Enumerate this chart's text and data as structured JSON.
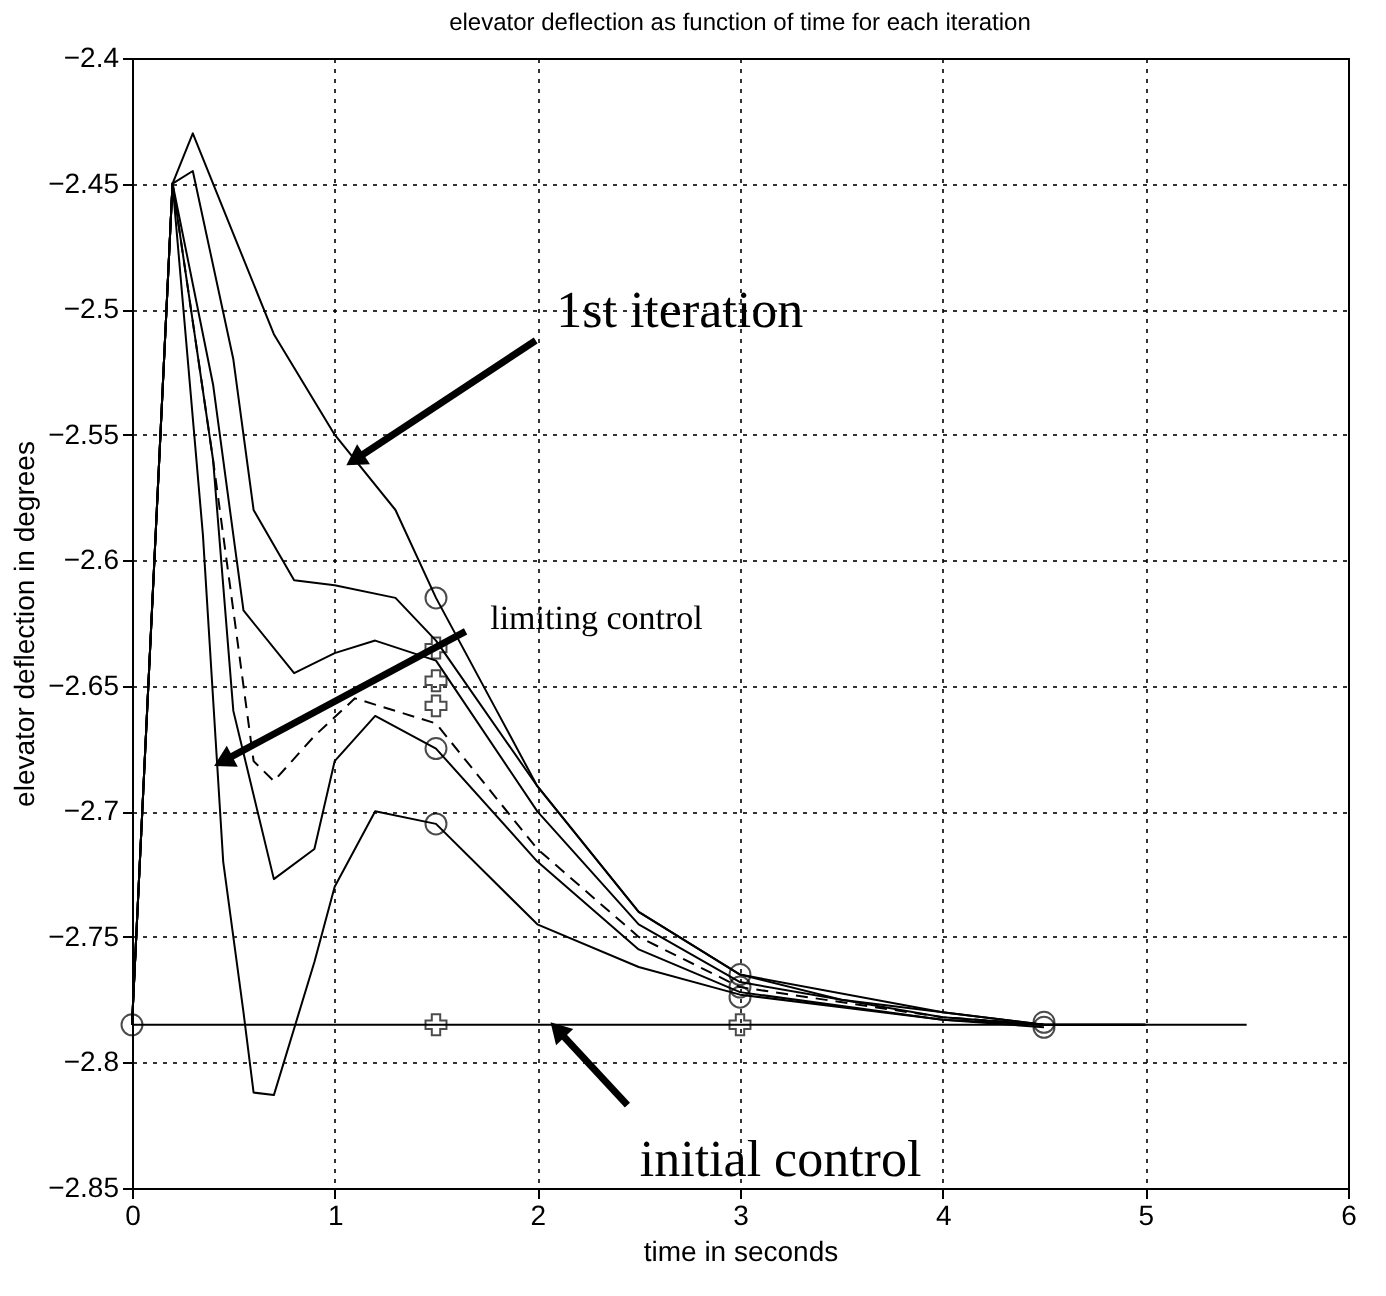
{
  "chart_data": {
    "type": "line",
    "title": "elevator deflection as function of time for each iteration",
    "xlabel": "time in seconds",
    "ylabel": "elevator deflection in degrees",
    "xlim": [
      0,
      6
    ],
    "xticks": [
      0,
      1,
      2,
      3,
      4,
      5,
      6
    ],
    "ylim": [
      -2.85,
      -2.4
    ],
    "yticks": [
      -2.85,
      -2.8,
      -2.75,
      -2.7,
      -2.65,
      -2.6,
      -2.55,
      -2.5,
      -2.45,
      -2.4
    ],
    "grid": true,
    "series": [
      {
        "color": "#000000",
        "x": [
          0,
          0.2,
          0.3,
          0.5,
          0.7,
          1.0,
          1.3,
          1.5,
          1.8,
          2.0,
          2.5,
          3.0,
          3.5,
          4.0,
          4.5,
          5.0
        ],
        "values": [
          -2.785,
          -2.45,
          -2.43,
          -2.47,
          -2.51,
          -2.55,
          -2.58,
          -2.615,
          -2.66,
          -2.69,
          -2.74,
          -2.765,
          -2.775,
          -2.78,
          -2.785,
          -2.785
        ]
      },
      {
        "color": "#000000",
        "x": [
          0,
          0.2,
          0.3,
          0.5,
          0.6,
          0.8,
          1.0,
          1.3,
          1.5,
          2.0,
          2.5,
          3.0,
          4.0,
          4.5,
          5.0
        ],
        "values": [
          -2.785,
          -2.45,
          -2.445,
          -2.52,
          -2.58,
          -2.608,
          -2.61,
          -2.615,
          -2.632,
          -2.69,
          -2.74,
          -2.765,
          -2.78,
          -2.785,
          -2.785
        ]
      },
      {
        "color": "#000000",
        "x": [
          0,
          0.2,
          0.4,
          0.55,
          0.8,
          1.0,
          1.2,
          1.5,
          2.0,
          2.5,
          3.0,
          4.0,
          4.5,
          5.0
        ],
        "values": [
          -2.785,
          -2.45,
          -2.53,
          -2.62,
          -2.645,
          -2.637,
          -2.632,
          -2.64,
          -2.7,
          -2.745,
          -2.768,
          -2.782,
          -2.785,
          -2.785
        ]
      },
      {
        "color": "#000000",
        "line_style": "dashed",
        "x": [
          0,
          0.2,
          0.4,
          0.6,
          0.7,
          0.9,
          1.1,
          1.5,
          2.0,
          2.5,
          3.0,
          4.0,
          4.5
        ],
        "values": [
          -2.785,
          -2.45,
          -2.56,
          -2.68,
          -2.688,
          -2.67,
          -2.655,
          -2.665,
          -2.715,
          -2.75,
          -2.77,
          -2.782,
          -2.785
        ]
      },
      {
        "color": "#000000",
        "x": [
          0,
          0.2,
          0.4,
          0.5,
          0.7,
          0.9,
          1.0,
          1.2,
          1.5,
          2.0,
          2.5,
          3.0,
          4.0,
          4.5
        ],
        "values": [
          -2.785,
          -2.45,
          -2.56,
          -2.66,
          -2.727,
          -2.715,
          -2.68,
          -2.662,
          -2.675,
          -2.72,
          -2.755,
          -2.772,
          -2.783,
          -2.785
        ]
      },
      {
        "color": "#000000",
        "x": [
          0,
          0.2,
          0.35,
          0.45,
          0.55,
          0.6,
          0.7,
          0.9,
          1.0,
          1.2,
          1.5,
          2.0,
          2.5,
          3.0,
          4.0,
          4.5
        ],
        "values": [
          -2.785,
          -2.45,
          -2.59,
          -2.72,
          -2.78,
          -2.812,
          -2.813,
          -2.76,
          -2.73,
          -2.7,
          -2.705,
          -2.745,
          -2.762,
          -2.773,
          -2.783,
          -2.786
        ]
      },
      {
        "color": "#000000",
        "x": [
          0,
          5.5
        ],
        "values": [
          -2.785,
          -2.785
        ]
      },
      {
        "type": "scatter",
        "marker": "circle",
        "color": "#000000",
        "x": [
          0,
          1.5,
          1.5,
          1.5,
          3,
          3,
          3,
          4.5,
          4.5
        ],
        "values": [
          -2.785,
          -2.615,
          -2.675,
          -2.705,
          -2.765,
          -2.77,
          -2.774,
          -2.784,
          -2.786
        ]
      },
      {
        "type": "scatter",
        "marker": "cross",
        "color": "#000000",
        "x": [
          1.5,
          1.5,
          1.5,
          1.5,
          3
        ],
        "values": [
          -2.635,
          -2.648,
          -2.658,
          -2.785,
          -2.785
        ]
      }
    ],
    "annotations": [
      {
        "text": "1st iteration",
        "x": 1.1,
        "y": -2.56
      },
      {
        "text": "limiting control",
        "x": 0.45,
        "y": -2.68
      },
      {
        "text": "initial control",
        "x": 2.1,
        "y": -2.787
      }
    ]
  }
}
